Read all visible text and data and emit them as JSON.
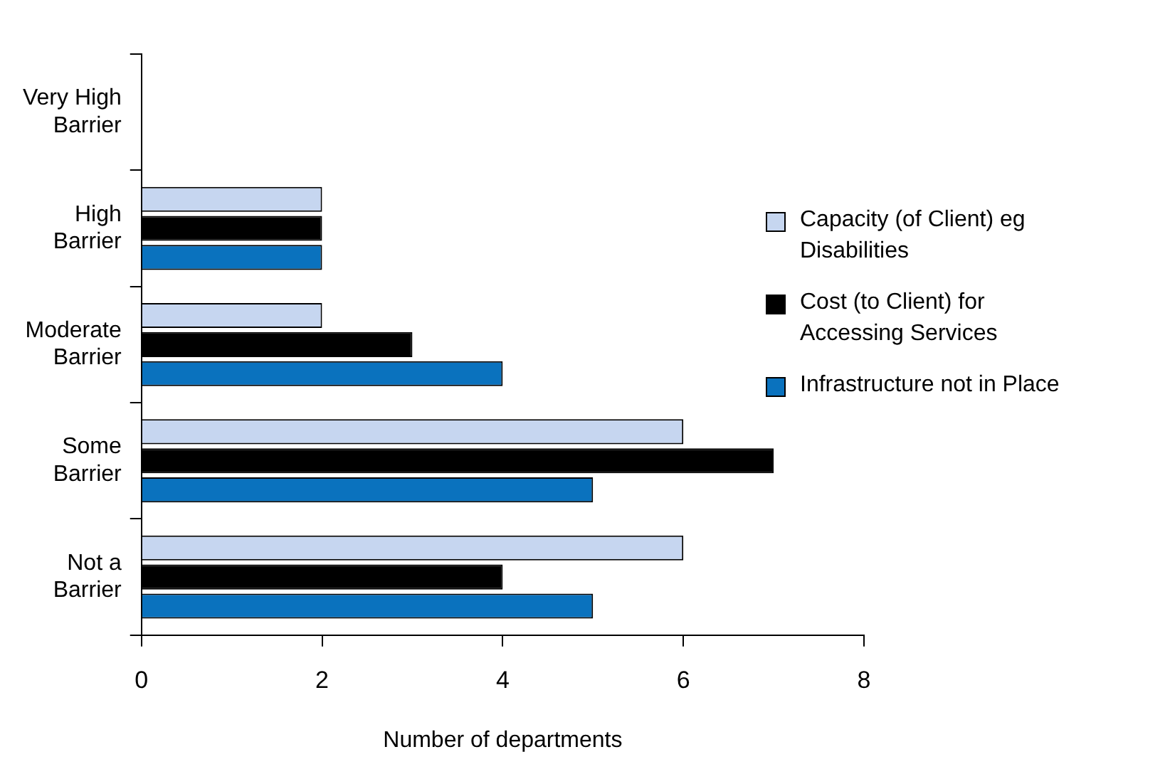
{
  "chart_data": {
    "type": "bar",
    "orientation": "horizontal",
    "xlabel": "Number of departments",
    "categories": [
      "Very High Barrier",
      "High Barrier",
      "Moderate Barrier",
      "Some Barrier",
      "Not a Barrier"
    ],
    "series": [
      {
        "name": "Capacity (of Client) eg Disabilities",
        "color": "#c6d6f0",
        "values": [
          0,
          2,
          2,
          6,
          6
        ]
      },
      {
        "name": "Cost (to Client) for Accessing Services",
        "color": "#000000",
        "values": [
          0,
          2,
          3,
          7,
          4
        ]
      },
      {
        "name": "Infrastructure not in Place",
        "color": "#0a72be",
        "values": [
          0,
          2,
          4,
          5,
          5
        ]
      }
    ],
    "xlim": [
      0,
      8
    ],
    "xticks": [
      0,
      2,
      4,
      6,
      8
    ],
    "grid": false,
    "legend": "right"
  }
}
